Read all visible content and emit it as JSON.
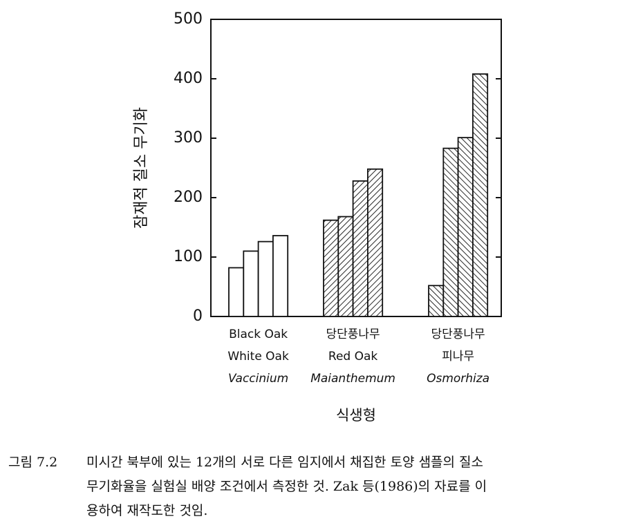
{
  "chart_data": {
    "type": "bar",
    "ylabel": "잠재적 질소 무기화",
    "xlabel": "식생형",
    "categories": [
      [
        "Black Oak",
        "White Oak",
        "Vaccinium"
      ],
      [
        "당단풍나무",
        "Red Oak",
        "Maianthemum"
      ],
      [
        "당단풍나무",
        "피나무",
        "Osmorhiza"
      ]
    ],
    "values": [
      [
        82,
        110,
        126,
        136
      ],
      [
        162,
        168,
        228,
        248
      ],
      [
        52,
        283,
        301,
        408
      ]
    ],
    "patterns": [
      "none",
      "hatch",
      "hatch-reverse"
    ],
    "ylim": [
      0,
      500
    ],
    "yticks": [
      0,
      100,
      200,
      300,
      400,
      500
    ]
  },
  "caption": {
    "label": "그림 7.2",
    "lines": [
      "미시간 북부에 있는 12개의 서로 다른 임지에서 채집한 토양 샘플의 질소",
      "무기화율을 실험실 배양 조건에서 측정한 것. Zak 등(1986)의 자료를 이",
      "용하여 재작도한 것임."
    ]
  }
}
